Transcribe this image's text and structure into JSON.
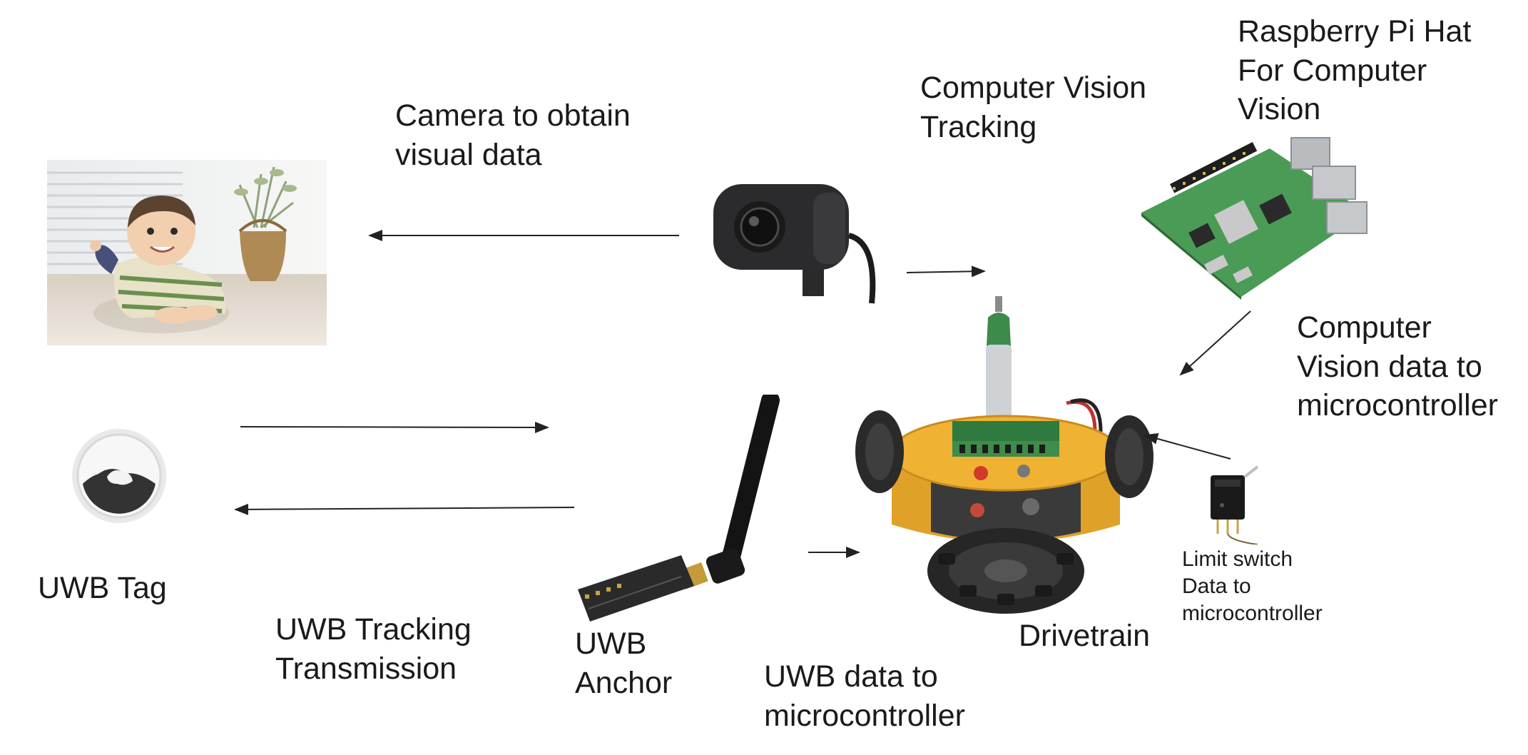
{
  "labels": {
    "camera": [
      "Camera to obtain",
      "visual data"
    ],
    "cv_tracking": [
      "Computer Vision",
      "Tracking"
    ],
    "rpi_hat": [
      "Raspberry Pi Hat",
      "For Computer",
      "Vision"
    ],
    "cv_data": [
      "Computer",
      "Vision data to",
      "microcontroller"
    ],
    "uwb_tag": [
      "UWB Tag"
    ],
    "uwb_tracking": [
      "UWB Tracking",
      "Transmission"
    ],
    "uwb_anchor": [
      "UWB",
      "Anchor"
    ],
    "uwb_data": [
      "UWB data to",
      "microcontroller"
    ],
    "drivetrain": [
      "Drivetrain"
    ],
    "limit_switch": [
      "Limit switch",
      "Data to",
      "microcontroller"
    ]
  },
  "pictures": [
    {
      "name": "child-photo",
      "depicts": "smiling baby lying on floor"
    },
    {
      "name": "uwb-tag-icon",
      "depicts": "round UWB tracking tag"
    },
    {
      "name": "webcam-icon",
      "depicts": "webcam"
    },
    {
      "name": "raspberry-pi-icon",
      "depicts": "Raspberry Pi board"
    },
    {
      "name": "robot-drivetrain-icon",
      "depicts": "omni-wheel robot base with oxygen cylinder"
    },
    {
      "name": "uwb-antenna-icon",
      "depicts": "UWB anchor module with antenna"
    },
    {
      "name": "limit-switch-icon",
      "depicts": "limit switch"
    }
  ],
  "colors": {
    "text": "#1a1a1a",
    "arrow": "#222222",
    "robot_body": "#e8a82a",
    "pcb_green": "#3a9a4a"
  }
}
